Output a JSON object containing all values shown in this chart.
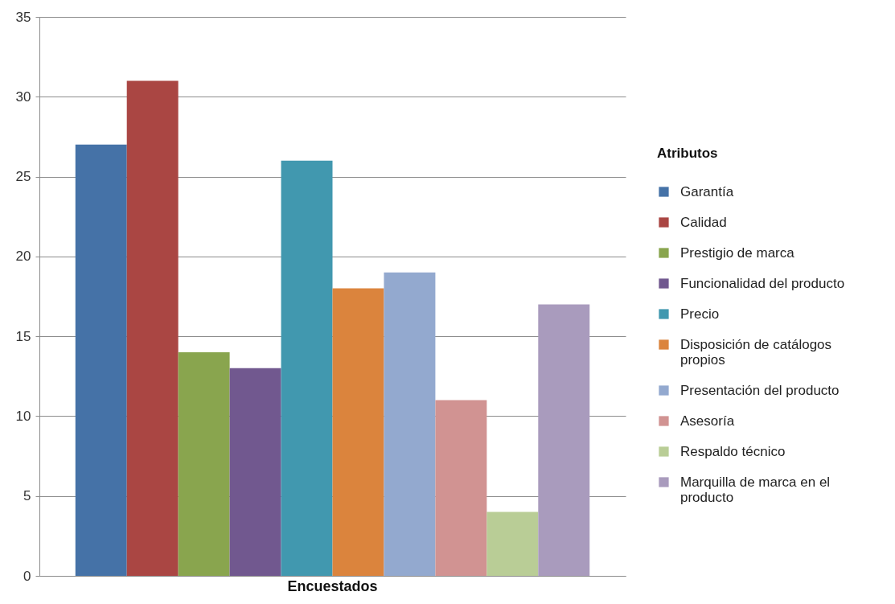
{
  "chart_data": {
    "type": "bar",
    "categories": [
      "Encuestados"
    ],
    "legend_title": "Atributos",
    "series": [
      {
        "name": "Garantía",
        "color": "#4572a7",
        "values": [
          27
        ]
      },
      {
        "name": "Calidad",
        "color": "#aa4643",
        "values": [
          31
        ]
      },
      {
        "name": "Prestigio de marca",
        "color": "#89a54e",
        "values": [
          14
        ]
      },
      {
        "name": "Funcionalidad del producto",
        "color": "#71588f",
        "values": [
          13
        ]
      },
      {
        "name": "Precio",
        "color": "#4198af",
        "values": [
          26
        ]
      },
      {
        "name": "Disposición de catálogos propios",
        "color": "#db843d",
        "values": [
          18
        ]
      },
      {
        "name": "Presentación del producto",
        "color": "#93a9cf",
        "values": [
          19
        ]
      },
      {
        "name": "Asesoría",
        "color": "#d19392",
        "values": [
          11
        ]
      },
      {
        "name": "Respaldo técnico",
        "color": "#b9cd96",
        "values": [
          4
        ]
      },
      {
        "name": "Marquilla de marca en el producto",
        "color": "#a99bbd",
        "values": [
          17
        ]
      }
    ],
    "ylim": [
      0,
      35
    ],
    "yticks": [
      0,
      5,
      10,
      15,
      20,
      25,
      30,
      35
    ],
    "grid": "y",
    "legend": "right"
  }
}
